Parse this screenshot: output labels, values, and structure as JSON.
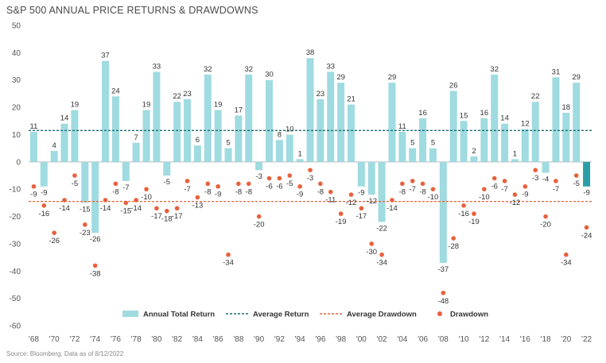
{
  "header": {
    "title": "S&P 500 ANNUAL PRICE RETURNS & DRAWDOWNS"
  },
  "footer": {
    "source": "Source: Bloomberg, Data as of 8/12/2022"
  },
  "colors": {
    "bar": "#9fdbe0",
    "bar_latest": "#2a9ea7",
    "average_return": "#1f6f73",
    "drawdown": "#e8603c",
    "zero_line": "#bbbbbb"
  },
  "chart_data": {
    "type": "bar",
    "title": "S&P 500 ANNUAL PRICE RETURNS & DRAWDOWNS",
    "xlabel": "",
    "ylabel": "",
    "ylim": [
      -60,
      50
    ],
    "yticks": [
      -60,
      -50,
      -40,
      -30,
      -20,
      -10,
      0,
      10,
      20,
      30,
      40,
      50
    ],
    "grid": false,
    "legend_position": "bottom",
    "x": [
      1968,
      1969,
      1970,
      1971,
      1972,
      1973,
      1974,
      1975,
      1976,
      1977,
      1978,
      1979,
      1980,
      1981,
      1982,
      1983,
      1984,
      1985,
      1986,
      1987,
      1988,
      1989,
      1990,
      1991,
      1992,
      1993,
      1994,
      1995,
      1996,
      1997,
      1998,
      1999,
      2000,
      2001,
      2002,
      2003,
      2004,
      2005,
      2006,
      2007,
      2008,
      2009,
      2010,
      2011,
      2012,
      2013,
      2014,
      2015,
      2016,
      2017,
      2018,
      2019,
      2020,
      2021,
      2022
    ],
    "xtick_labels": [
      "'68",
      "'70",
      "'72",
      "'74",
      "'76",
      "'78",
      "'80",
      "'82",
      "'84",
      "'86",
      "'88",
      "'90",
      "'92",
      "'94",
      "'96",
      "'98",
      "'00",
      "'02",
      "'04",
      "'06",
      "'08",
      "'10",
      "'12",
      "'14",
      "'16",
      "'18",
      "'20",
      "'22"
    ],
    "series": [
      {
        "name": "Annual Total Return",
        "type": "bar",
        "values": [
          11,
          -9,
          4,
          14,
          19,
          -15,
          -26,
          37,
          24,
          -7,
          7,
          19,
          33,
          -5,
          22,
          23,
          6,
          32,
          19,
          5,
          17,
          32,
          -3,
          30,
          8,
          10,
          1,
          38,
          23,
          33,
          29,
          21,
          -9,
          -12,
          -22,
          29,
          11,
          5,
          16,
          5,
          -37,
          26,
          15,
          2,
          16,
          32,
          14,
          1,
          12,
          22,
          -4,
          31,
          18,
          29,
          -9
        ]
      },
      {
        "name": "Average Return",
        "type": "line",
        "value": 11.5
      },
      {
        "name": "Average Drawdown",
        "type": "line",
        "value": -14.5
      },
      {
        "name": "Drawdown",
        "type": "scatter",
        "values": [
          -9,
          -16,
          -26,
          -14,
          -5,
          -23,
          -38,
          -14,
          -8,
          -15,
          -14,
          -10,
          -17,
          -18,
          -17,
          -7,
          -13,
          -8,
          -9,
          -34,
          -8,
          -8,
          -20,
          -6,
          -6,
          -5,
          -9,
          -3,
          -8,
          -11,
          -19,
          -12,
          -17,
          -30,
          -34,
          -14,
          -8,
          -7,
          -8,
          -10,
          -48,
          -28,
          -16,
          -19,
          -10,
          -6,
          -7,
          -12,
          -9,
          -3,
          -20,
          -7,
          -34,
          -5,
          -24
        ]
      }
    ],
    "bar_labels": [
      "11",
      "-9",
      "4",
      "14",
      "19",
      "-15",
      "-26",
      "37",
      "24",
      "-7",
      "7",
      "19",
      "33",
      "-5",
      "22",
      "23",
      "6",
      "32",
      "19",
      "5",
      "17",
      "32",
      "-3",
      "30",
      "8",
      "10",
      "1",
      "38",
      "23",
      "33",
      "29",
      "21",
      "-9",
      "-12",
      "-22",
      "29",
      "11",
      "5",
      "16",
      "5",
      "-37",
      "26",
      "15",
      "2",
      "16",
      "32",
      "14",
      "1",
      "12",
      "22",
      "-4",
      "31",
      "18",
      "29",
      "-9"
    ],
    "drawdown_labels": [
      "-9",
      "-16",
      "-26",
      "-14",
      "-5",
      "-23",
      "-38",
      "-14",
      "-8",
      "-15",
      "-14",
      "-10",
      "-17",
      "-18",
      "-17",
      "-7",
      "-13",
      "-8",
      "-9",
      "-34",
      "-8",
      "-8",
      "-20",
      "-6",
      "-6",
      "-5",
      "-9",
      "-3",
      "-8",
      "-11",
      "-19",
      "-12",
      "-17",
      "-30",
      "-34",
      "-14",
      "-8",
      "-7",
      "-8",
      "-10",
      "-48",
      "-28",
      "-16",
      "-19",
      "-10",
      "-6",
      "-7",
      "-12",
      "-9",
      "-3",
      "-20",
      "-7",
      "-34",
      "-5",
      "-24"
    ],
    "legend": [
      "Annual Total Return",
      "Average Return",
      "Average Drawdown",
      "Drawdown"
    ]
  }
}
